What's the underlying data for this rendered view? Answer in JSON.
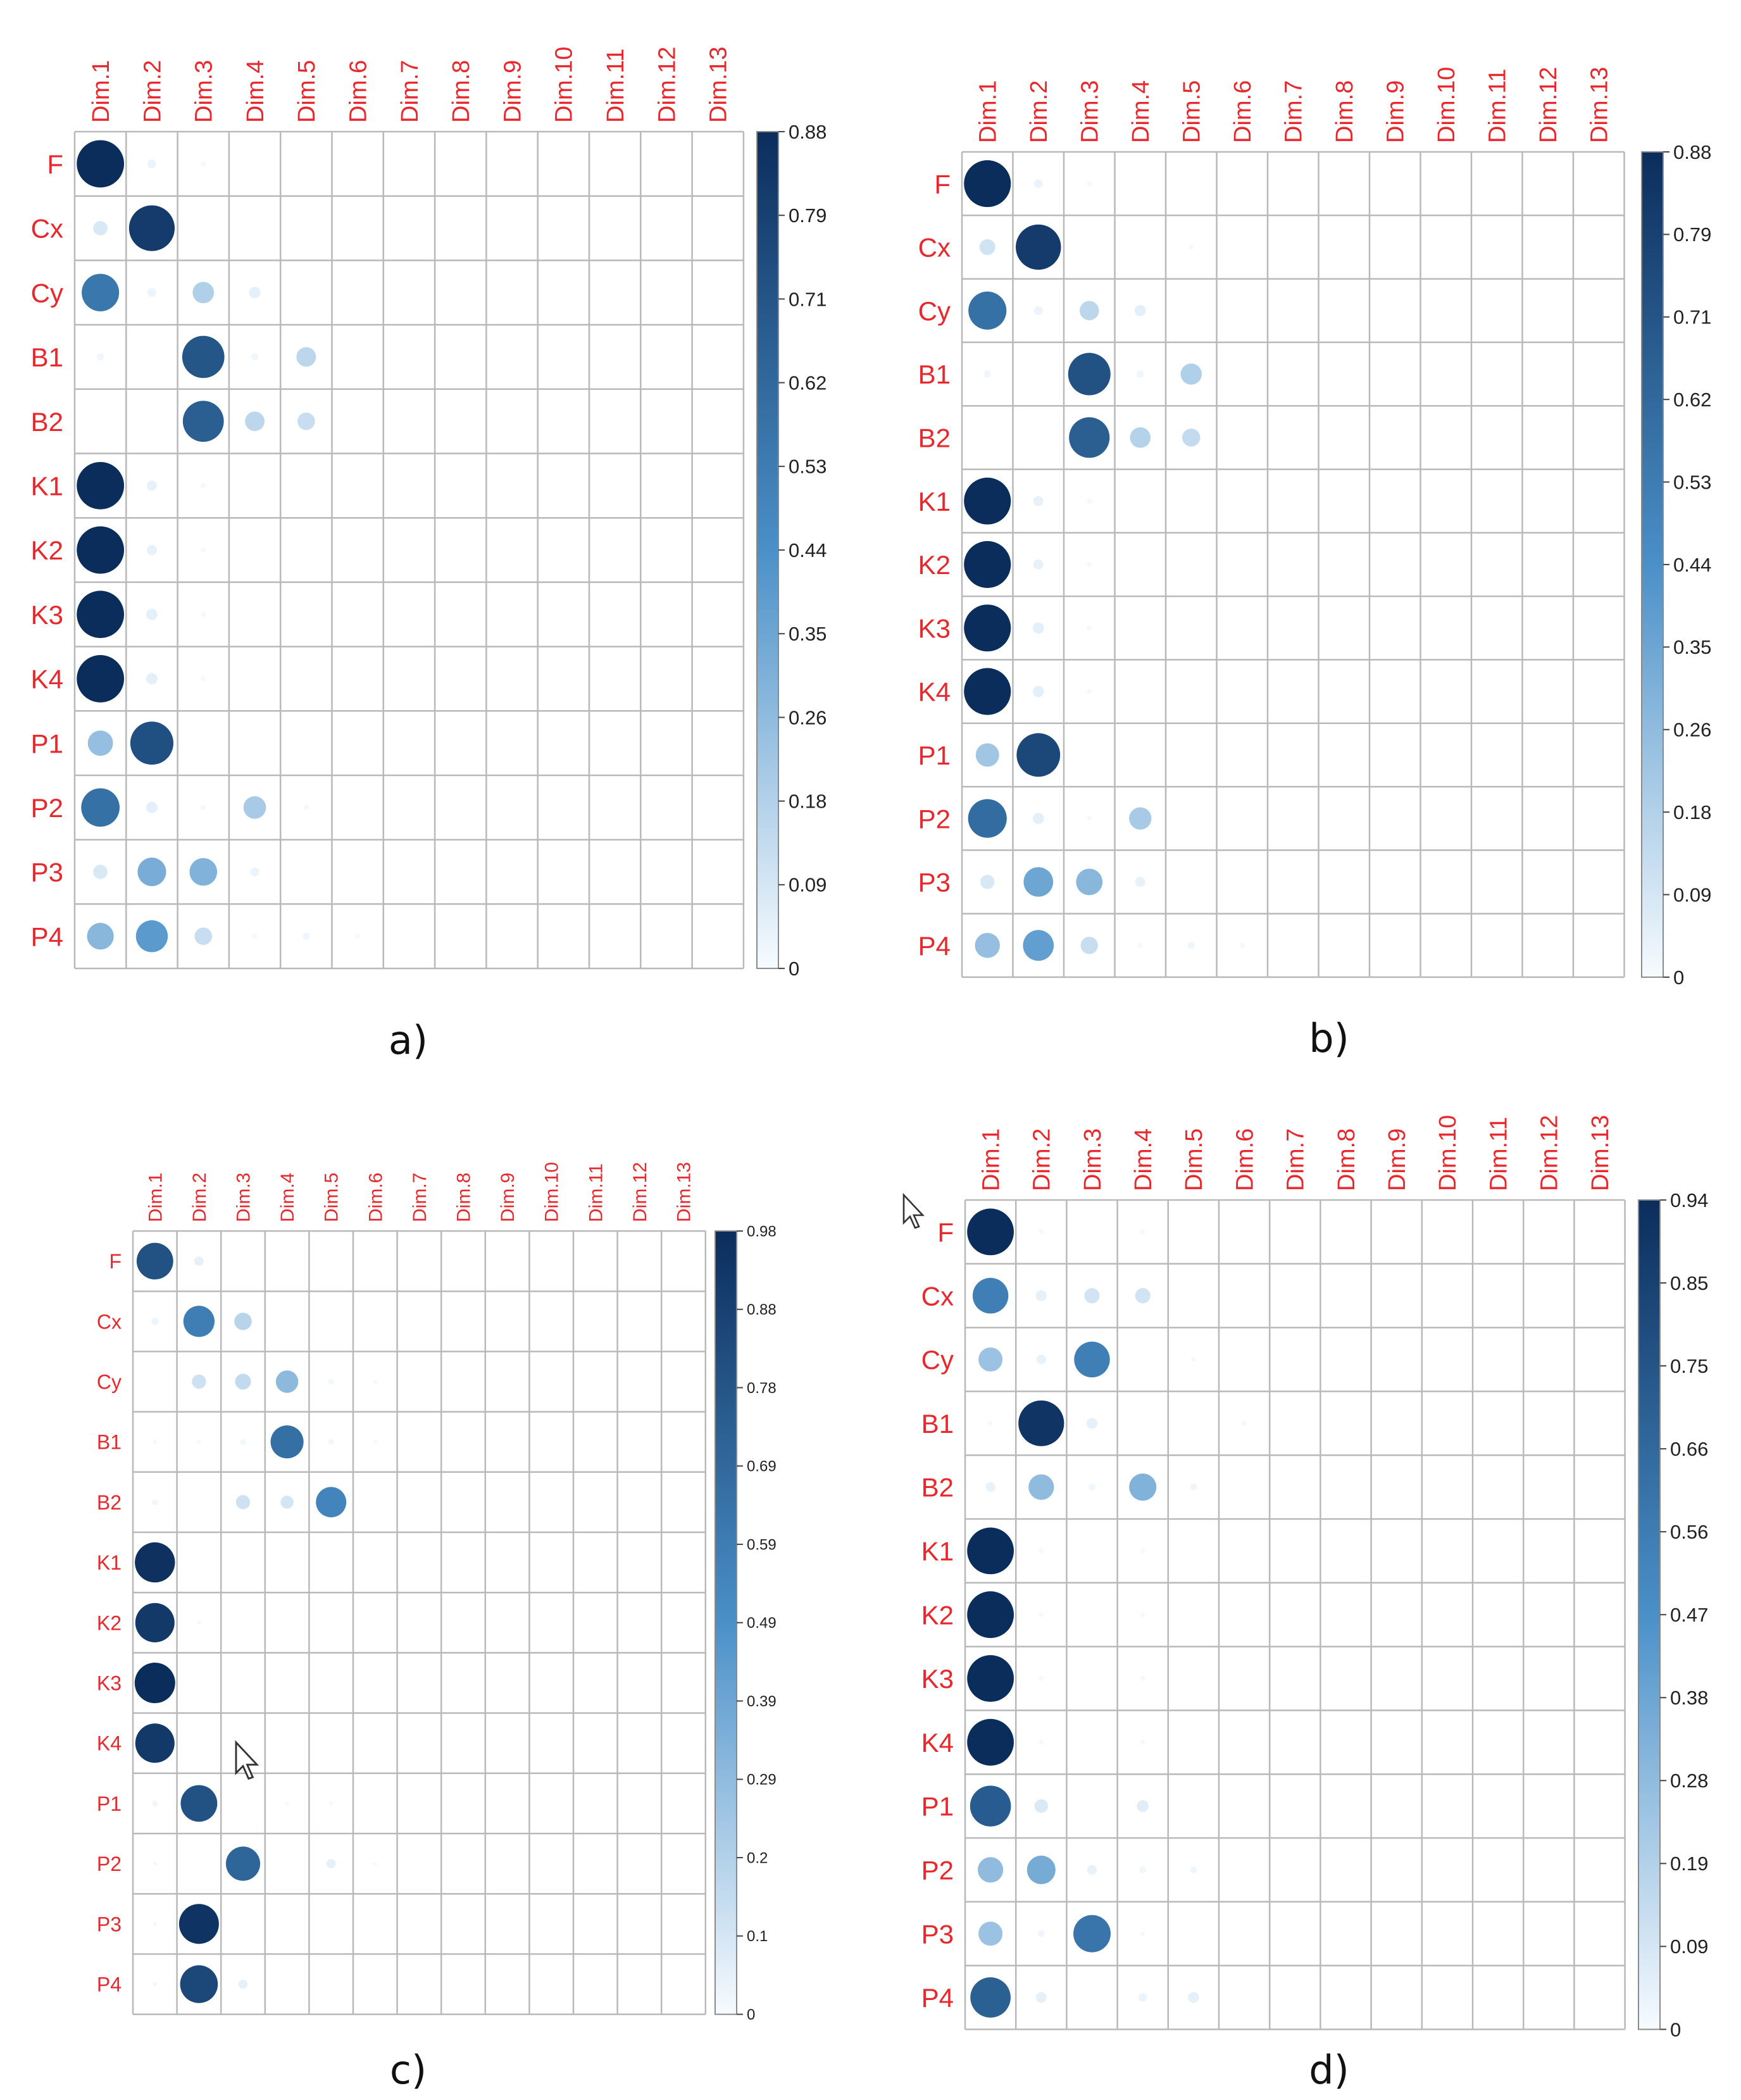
{
  "colors": {
    "label_red": "#e8282d",
    "grid": "#b9b9b9",
    "frame": "#8a8a8a",
    "scale_low": "#f7fbff",
    "scale_mid": "#4a90c8",
    "scale_high": "#0b2d5c"
  },
  "chart_data": [
    {
      "type": "heatmap",
      "style": "correlation-circles",
      "caption": "a)",
      "columns": [
        "Dim.1",
        "Dim.2",
        "Dim.3",
        "Dim.4",
        "Dim.5",
        "Dim.6",
        "Dim.7",
        "Dim.8",
        "Dim.9",
        "Dim.10",
        "Dim.11",
        "Dim.12",
        "Dim.13"
      ],
      "rows": [
        "F",
        "Cx",
        "Cy",
        "B1",
        "B2",
        "K1",
        "K2",
        "K3",
        "K4",
        "P1",
        "P2",
        "P3",
        "P4"
      ],
      "colorbar_max": 0.88,
      "colorbar_ticks": [
        "0.88",
        "0.79",
        "0.71",
        "0.62",
        "0.53",
        "0.44",
        "0.35",
        "0.26",
        "0.18",
        "0.09",
        "0"
      ],
      "values": [
        [
          0.88,
          0.03,
          0.01,
          0,
          0,
          0,
          0,
          0,
          0,
          0,
          0,
          0,
          0
        ],
        [
          0.08,
          0.82,
          0,
          0,
          0,
          0,
          0,
          0,
          0,
          0,
          0,
          0,
          0
        ],
        [
          0.55,
          0.03,
          0.18,
          0.05,
          0,
          0,
          0,
          0,
          0,
          0,
          0,
          0,
          0
        ],
        [
          0.02,
          0,
          0.7,
          0.02,
          0.15,
          0,
          0,
          0,
          0,
          0,
          0,
          0,
          0
        ],
        [
          0,
          0,
          0.66,
          0.15,
          0.12,
          0,
          0,
          0,
          0,
          0,
          0,
          0,
          0
        ],
        [
          0.88,
          0.04,
          0.01,
          0,
          0,
          0,
          0,
          0,
          0,
          0,
          0,
          0,
          0
        ],
        [
          0.88,
          0.04,
          0.01,
          0,
          0,
          0,
          0,
          0,
          0,
          0,
          0,
          0,
          0
        ],
        [
          0.88,
          0.05,
          0.01,
          0,
          0,
          0,
          0,
          0,
          0,
          0,
          0,
          0,
          0
        ],
        [
          0.88,
          0.05,
          0.01,
          0,
          0,
          0,
          0,
          0,
          0,
          0,
          0,
          0,
          0
        ],
        [
          0.25,
          0.73,
          0,
          0,
          0,
          0,
          0,
          0,
          0,
          0,
          0,
          0,
          0
        ],
        [
          0.58,
          0.05,
          0.01,
          0.2,
          0.01,
          0,
          0,
          0,
          0,
          0,
          0,
          0,
          0
        ],
        [
          0.08,
          0.32,
          0.3,
          0.03,
          0,
          0,
          0,
          0,
          0,
          0,
          0,
          0,
          0
        ],
        [
          0.28,
          0.4,
          0.12,
          0.01,
          0.02,
          0.01,
          0,
          0,
          0,
          0,
          0,
          0,
          0
        ]
      ]
    },
    {
      "type": "heatmap",
      "style": "correlation-circles",
      "caption": "b)",
      "columns": [
        "Dim.1",
        "Dim.2",
        "Dim.3",
        "Dim.4",
        "Dim.5",
        "Dim.6",
        "Dim.7",
        "Dim.8",
        "Dim.9",
        "Dim.10",
        "Dim.11",
        "Dim.12",
        "Dim.13"
      ],
      "rows": [
        "F",
        "Cx",
        "Cy",
        "B1",
        "B2",
        "K1",
        "K2",
        "K3",
        "K4",
        "P1",
        "P2",
        "P3",
        "P4"
      ],
      "colorbar_max": 0.88,
      "colorbar_ticks": [
        "0.88",
        "0.79",
        "0.71",
        "0.62",
        "0.53",
        "0.44",
        "0.35",
        "0.26",
        "0.18",
        "0.09",
        "0"
      ],
      "values": [
        [
          0.88,
          0.03,
          0.01,
          0,
          0,
          0,
          0,
          0,
          0,
          0,
          0,
          0,
          0
        ],
        [
          0.1,
          0.82,
          0,
          0,
          0.01,
          0,
          0,
          0,
          0,
          0,
          0,
          0,
          0
        ],
        [
          0.58,
          0.03,
          0.15,
          0.05,
          0,
          0,
          0,
          0,
          0,
          0,
          0,
          0,
          0
        ],
        [
          0.02,
          0,
          0.72,
          0.02,
          0.18,
          0,
          0,
          0,
          0,
          0,
          0,
          0,
          0
        ],
        [
          0,
          0,
          0.66,
          0.17,
          0.13,
          0,
          0,
          0,
          0,
          0,
          0,
          0,
          0
        ],
        [
          0.88,
          0.04,
          0.01,
          0,
          0,
          0,
          0,
          0,
          0,
          0,
          0,
          0,
          0
        ],
        [
          0.88,
          0.04,
          0.01,
          0,
          0,
          0,
          0,
          0,
          0,
          0,
          0,
          0,
          0
        ],
        [
          0.88,
          0.05,
          0.01,
          0,
          0,
          0,
          0,
          0,
          0,
          0,
          0,
          0,
          0
        ],
        [
          0.88,
          0.05,
          0.01,
          0,
          0,
          0,
          0,
          0,
          0,
          0,
          0,
          0,
          0
        ],
        [
          0.22,
          0.76,
          0,
          0,
          0,
          0,
          0,
          0,
          0,
          0,
          0,
          0,
          0
        ],
        [
          0.6,
          0.05,
          0.01,
          0.2,
          0,
          0,
          0,
          0,
          0,
          0,
          0,
          0,
          0
        ],
        [
          0.08,
          0.35,
          0.28,
          0.04,
          0,
          0,
          0,
          0,
          0,
          0,
          0,
          0,
          0
        ],
        [
          0.25,
          0.38,
          0.12,
          0.01,
          0.02,
          0.01,
          0,
          0,
          0,
          0,
          0,
          0,
          0
        ]
      ]
    },
    {
      "type": "heatmap",
      "style": "correlation-circles",
      "caption": "c)",
      "columns": [
        "Dim.1",
        "Dim.2",
        "Dim.3",
        "Dim.4",
        "Dim.5",
        "Dim.6",
        "Dim.7",
        "Dim.8",
        "Dim.9",
        "Dim.10",
        "Dim.11",
        "Dim.12",
        "Dim.13"
      ],
      "rows": [
        "F",
        "Cx",
        "Cy",
        "B1",
        "B2",
        "K1",
        "K2",
        "K3",
        "K4",
        "P1",
        "P2",
        "P3",
        "P4"
      ],
      "colorbar_max": 0.98,
      "colorbar_ticks": [
        "0.98",
        "0.88",
        "0.78",
        "0.69",
        "0.59",
        "0.49",
        "0.39",
        "0.29",
        "0.2",
        "0.1",
        "0"
      ],
      "values": [
        [
          0.8,
          0.05,
          0,
          0,
          0,
          0,
          0,
          0,
          0,
          0,
          0,
          0,
          0
        ],
        [
          0.03,
          0.58,
          0.18,
          0,
          0,
          0,
          0,
          0,
          0,
          0,
          0,
          0,
          0
        ],
        [
          0,
          0.12,
          0.15,
          0.3,
          0.02,
          0.01,
          0,
          0,
          0,
          0,
          0,
          0,
          0
        ],
        [
          0.01,
          0.01,
          0.02,
          0.65,
          0.02,
          0.01,
          0,
          0,
          0,
          0,
          0,
          0,
          0
        ],
        [
          0.02,
          0,
          0.12,
          0.1,
          0.55,
          0,
          0,
          0,
          0,
          0,
          0,
          0,
          0
        ],
        [
          0.96,
          0,
          0,
          0,
          0,
          0,
          0,
          0,
          0,
          0,
          0,
          0,
          0
        ],
        [
          0.92,
          0.01,
          0,
          0,
          0,
          0,
          0,
          0,
          0,
          0,
          0,
          0,
          0
        ],
        [
          0.98,
          0,
          0,
          0,
          0,
          0,
          0,
          0,
          0,
          0,
          0,
          0,
          0
        ],
        [
          0.92,
          0,
          0,
          0,
          0,
          0,
          0,
          0,
          0,
          0,
          0,
          0,
          0
        ],
        [
          0.02,
          0.8,
          0,
          0.01,
          0.01,
          0,
          0,
          0,
          0,
          0,
          0,
          0,
          0
        ],
        [
          0.01,
          0,
          0.7,
          0,
          0.05,
          0.01,
          0,
          0,
          0,
          0,
          0,
          0,
          0
        ],
        [
          0.01,
          0.95,
          0,
          0,
          0,
          0,
          0,
          0,
          0,
          0,
          0,
          0,
          0
        ],
        [
          0.01,
          0.85,
          0.05,
          0,
          0,
          0,
          0,
          0,
          0,
          0,
          0,
          0,
          0
        ]
      ]
    },
    {
      "type": "heatmap",
      "style": "correlation-circles",
      "caption": "d)",
      "columns": [
        "Dim.1",
        "Dim.2",
        "Dim.3",
        "Dim.4",
        "Dim.5",
        "Dim.6",
        "Dim.7",
        "Dim.8",
        "Dim.9",
        "Dim.10",
        "Dim.11",
        "Dim.12",
        "Dim.13"
      ],
      "rows": [
        "F",
        "Cx",
        "Cy",
        "B1",
        "B2",
        "K1",
        "K2",
        "K3",
        "K4",
        "P1",
        "P2",
        "P3",
        "P4"
      ],
      "colorbar_max": 0.94,
      "colorbar_ticks": [
        "0.94",
        "0.85",
        "0.75",
        "0.66",
        "0.56",
        "0.47",
        "0.38",
        "0.28",
        "0.19",
        "0.09",
        "0"
      ],
      "values": [
        [
          0.94,
          0.01,
          0,
          0.01,
          0,
          0,
          0,
          0,
          0,
          0,
          0,
          0,
          0
        ],
        [
          0.55,
          0.05,
          0.1,
          0.1,
          0,
          0,
          0,
          0,
          0,
          0,
          0,
          0,
          0
        ],
        [
          0.25,
          0.04,
          0.55,
          0,
          0.01,
          0,
          0,
          0,
          0,
          0,
          0,
          0,
          0
        ],
        [
          0.01,
          0.9,
          0.05,
          0,
          0,
          0.01,
          0,
          0,
          0,
          0,
          0,
          0,
          0
        ],
        [
          0.04,
          0.28,
          0.02,
          0.32,
          0.02,
          0,
          0,
          0,
          0,
          0,
          0,
          0,
          0
        ],
        [
          0.94,
          0.01,
          0,
          0.01,
          0,
          0,
          0,
          0,
          0,
          0,
          0,
          0,
          0
        ],
        [
          0.94,
          0.01,
          0,
          0.01,
          0,
          0,
          0,
          0,
          0,
          0,
          0,
          0,
          0
        ],
        [
          0.94,
          0.01,
          0,
          0.01,
          0,
          0,
          0,
          0,
          0,
          0,
          0,
          0,
          0
        ],
        [
          0.94,
          0.01,
          0,
          0.01,
          0,
          0,
          0,
          0,
          0,
          0,
          0,
          0,
          0
        ],
        [
          0.72,
          0.08,
          0,
          0.06,
          0,
          0,
          0,
          0,
          0,
          0,
          0,
          0,
          0
        ],
        [
          0.28,
          0.35,
          0.04,
          0.02,
          0.02,
          0,
          0,
          0,
          0,
          0,
          0,
          0,
          0
        ],
        [
          0.25,
          0.02,
          0.6,
          0.01,
          0,
          0,
          0,
          0,
          0,
          0,
          0,
          0,
          0
        ],
        [
          0.7,
          0.05,
          0,
          0.03,
          0.05,
          0,
          0,
          0,
          0,
          0,
          0,
          0,
          0
        ]
      ]
    }
  ]
}
